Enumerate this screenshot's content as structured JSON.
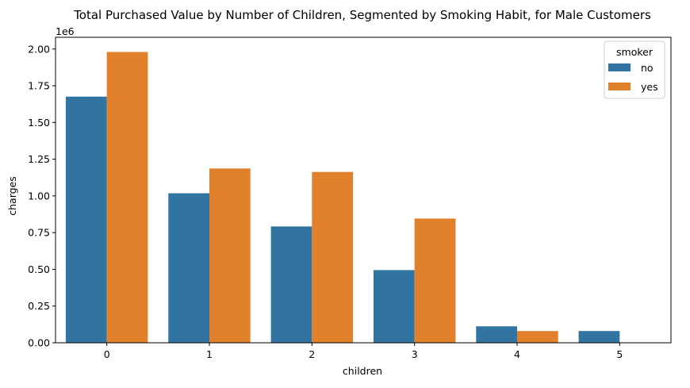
{
  "chart_data": {
    "type": "bar",
    "title": "Total Purchased Value by Number of Children, Segmented by Smoking Habit, for Male Customers",
    "xlabel": "children",
    "ylabel": "charges",
    "offset_label": "1e6",
    "scale": 1000000,
    "categories": [
      "0",
      "1",
      "2",
      "3",
      "4",
      "5"
    ],
    "series": [
      {
        "name": "no",
        "color": "#3274a1",
        "values": [
          1676000,
          1018000,
          792000,
          495000,
          112000,
          80000
        ]
      },
      {
        "name": "yes",
        "color": "#e1812c",
        "values": [
          1980000,
          1187000,
          1163000,
          846000,
          80000,
          null
        ]
      }
    ],
    "ylim": [
      0,
      2080000
    ],
    "yticks": [
      0,
      250000,
      500000,
      750000,
      1000000,
      1250000,
      1500000,
      1750000,
      2000000
    ],
    "ytick_labels": [
      "0.00",
      "0.25",
      "0.50",
      "0.75",
      "1.00",
      "1.25",
      "1.50",
      "1.75",
      "2.00"
    ],
    "grid": false,
    "legend": {
      "title": "smoker",
      "placement": "top-right"
    }
  }
}
